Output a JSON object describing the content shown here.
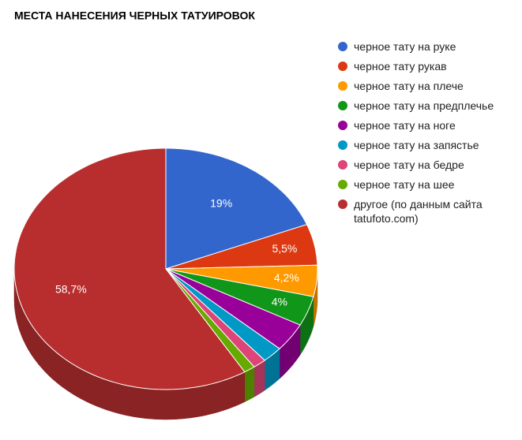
{
  "chart_data": {
    "type": "pie3d",
    "title": "МЕСТА НАНЕСЕНИЯ ЧЕРНЫХ ТАТУИРОВОК",
    "series": [
      {
        "name": "черное тату на руке",
        "color": "#3366cc",
        "values": [
          19
        ],
        "value_labels": [
          "19%"
        ]
      },
      {
        "name": "черное тату рукав",
        "color": "#dc3912",
        "values": [
          5.5
        ],
        "value_labels": [
          "5,5%"
        ]
      },
      {
        "name": "черное тату на плече",
        "color": "#ff9900",
        "values": [
          4.2
        ],
        "value_labels": [
          "4,2%"
        ]
      },
      {
        "name": "черное тату на предплечье",
        "color": "#109618",
        "values": [
          4
        ],
        "value_labels": [
          "4%"
        ]
      },
      {
        "name": "черное тату на ноге",
        "color": "#990099",
        "values": [
          3.8
        ],
        "value_labels": [
          null
        ]
      },
      {
        "name": "черное тату на запястье",
        "color": "#0099c6",
        "values": [
          2.2
        ],
        "value_labels": [
          null
        ]
      },
      {
        "name": "черное тату на бедре",
        "color": "#dd4477",
        "values": [
          1.4
        ],
        "value_labels": [
          null
        ]
      },
      {
        "name": "черное тату на шее",
        "color": "#66aa00",
        "values": [
          1.2
        ],
        "value_labels": [
          null
        ]
      },
      {
        "name": "другое (по данным сайта tatufoto.com)",
        "color": "#b82e2e",
        "values": [
          58.7
        ],
        "value_labels": [
          "58,7%"
        ]
      }
    ],
    "legend": "right"
  }
}
